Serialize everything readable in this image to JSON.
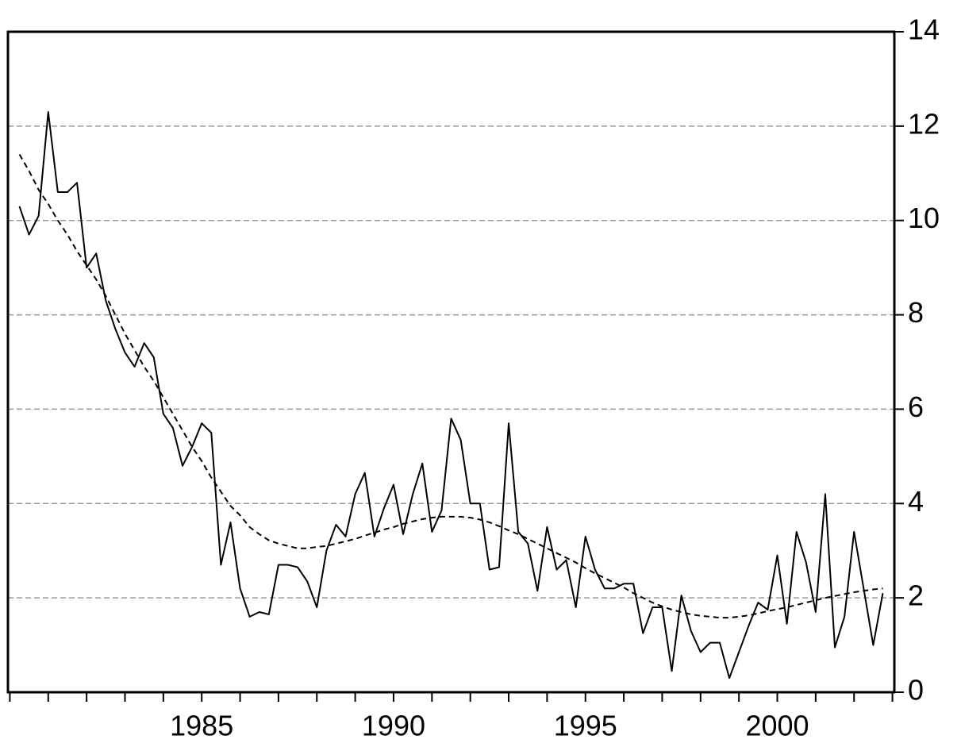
{
  "chart_data": {
    "type": "line",
    "x": [
      1980.25,
      1980.5,
      1980.75,
      1981,
      1981.25,
      1981.5,
      1981.75,
      1982,
      1982.25,
      1982.5,
      1982.75,
      1983,
      1983.25,
      1983.5,
      1983.75,
      1984,
      1984.25,
      1984.5,
      1984.75,
      1985,
      1985.25,
      1985.5,
      1985.75,
      1986,
      1986.25,
      1986.5,
      1986.75,
      1987,
      1987.25,
      1987.5,
      1987.75,
      1988,
      1988.25,
      1988.5,
      1988.75,
      1989,
      1989.25,
      1989.5,
      1989.75,
      1990,
      1990.25,
      1990.5,
      1990.75,
      1991,
      1991.25,
      1991.5,
      1991.75,
      1992,
      1992.25,
      1992.5,
      1992.75,
      1993,
      1993.25,
      1993.5,
      1993.75,
      1994,
      1994.25,
      1994.5,
      1994.75,
      1995,
      1995.25,
      1995.5,
      1995.75,
      1996,
      1996.25,
      1996.5,
      1996.75,
      1997,
      1997.25,
      1997.5,
      1997.75,
      1998,
      1998.25,
      1998.5,
      1998.75,
      1999,
      1999.25,
      1999.5,
      1999.75,
      2000,
      2000.25,
      2000.5,
      2000.75,
      2001,
      2001.25,
      2001.5,
      2001.75,
      2002,
      2002.25,
      2002.5,
      2002.75
    ],
    "series": [
      {
        "color": "#000000",
        "line_style": "solid",
        "values": [
          10.3,
          9.7,
          10.1,
          12.3,
          10.6,
          10.6,
          10.8,
          9.0,
          9.3,
          8.3,
          7.7,
          7.2,
          6.9,
          7.4,
          7.1,
          5.9,
          5.6,
          4.8,
          5.2,
          5.7,
          5.5,
          2.7,
          3.6,
          2.2,
          1.6,
          1.7,
          1.65,
          2.7,
          2.7,
          2.65,
          2.35,
          1.8,
          3.0,
          3.55,
          3.3,
          4.2,
          4.65,
          3.3,
          3.9,
          4.4,
          3.35,
          4.2,
          4.85,
          3.4,
          3.85,
          5.8,
          5.35,
          4.0,
          4.0,
          2.6,
          2.65,
          5.7,
          3.4,
          3.15,
          2.15,
          3.5,
          2.6,
          2.8,
          1.8,
          3.3,
          2.6,
          2.2,
          2.2,
          2.3,
          2.3,
          1.25,
          1.8,
          1.8,
          0.45,
          2.05,
          1.3,
          0.85,
          1.05,
          1.05,
          0.3,
          0.85,
          1.4,
          1.9,
          1.75,
          2.9,
          1.45,
          3.4,
          2.75,
          1.7,
          4.2,
          0.95,
          1.6,
          3.4,
          2.2,
          1.0,
          2.1
        ]
      },
      {
        "color": "#000000",
        "line_style": "dashed",
        "values": [
          11.4,
          11.05,
          10.65,
          10.35,
          10.0,
          9.7,
          9.35,
          9.05,
          8.75,
          8.4,
          8.0,
          7.6,
          7.25,
          6.9,
          6.6,
          6.25,
          5.9,
          5.55,
          5.2,
          4.9,
          4.55,
          4.25,
          3.95,
          3.75,
          3.5,
          3.35,
          3.22,
          3.15,
          3.1,
          3.05,
          3.05,
          3.08,
          3.1,
          3.15,
          3.2,
          3.25,
          3.32,
          3.38,
          3.45,
          3.5,
          3.57,
          3.62,
          3.67,
          3.7,
          3.72,
          3.72,
          3.72,
          3.7,
          3.66,
          3.6,
          3.52,
          3.43,
          3.35,
          3.25,
          3.15,
          3.05,
          2.95,
          2.85,
          2.75,
          2.63,
          2.52,
          2.42,
          2.32,
          2.22,
          2.1,
          2.0,
          1.9,
          1.82,
          1.75,
          1.7,
          1.65,
          1.62,
          1.6,
          1.58,
          1.58,
          1.6,
          1.63,
          1.67,
          1.72,
          1.76,
          1.8,
          1.85,
          1.9,
          1.95,
          2.0,
          2.04,
          2.08,
          2.12,
          2.15,
          2.18,
          2.2
        ]
      }
    ],
    "xlim": [
      1979.95,
      2003.05
    ],
    "xticks": [
      1985,
      1990,
      1995,
      2000
    ],
    "xminorticks": [
      1980,
      1981,
      1982,
      1983,
      1984,
      1985,
      1986,
      1987,
      1988,
      1989,
      1990,
      1991,
      1992,
      1993,
      1994,
      1995,
      1996,
      1997,
      1998,
      1999,
      2000,
      2001,
      2002,
      2003
    ],
    "ylim": [
      0,
      14
    ],
    "yticks": [
      0,
      2,
      4,
      6,
      8,
      10,
      12,
      14
    ],
    "y_axis_side": "right",
    "grid": true,
    "grid_color": "#999999"
  }
}
